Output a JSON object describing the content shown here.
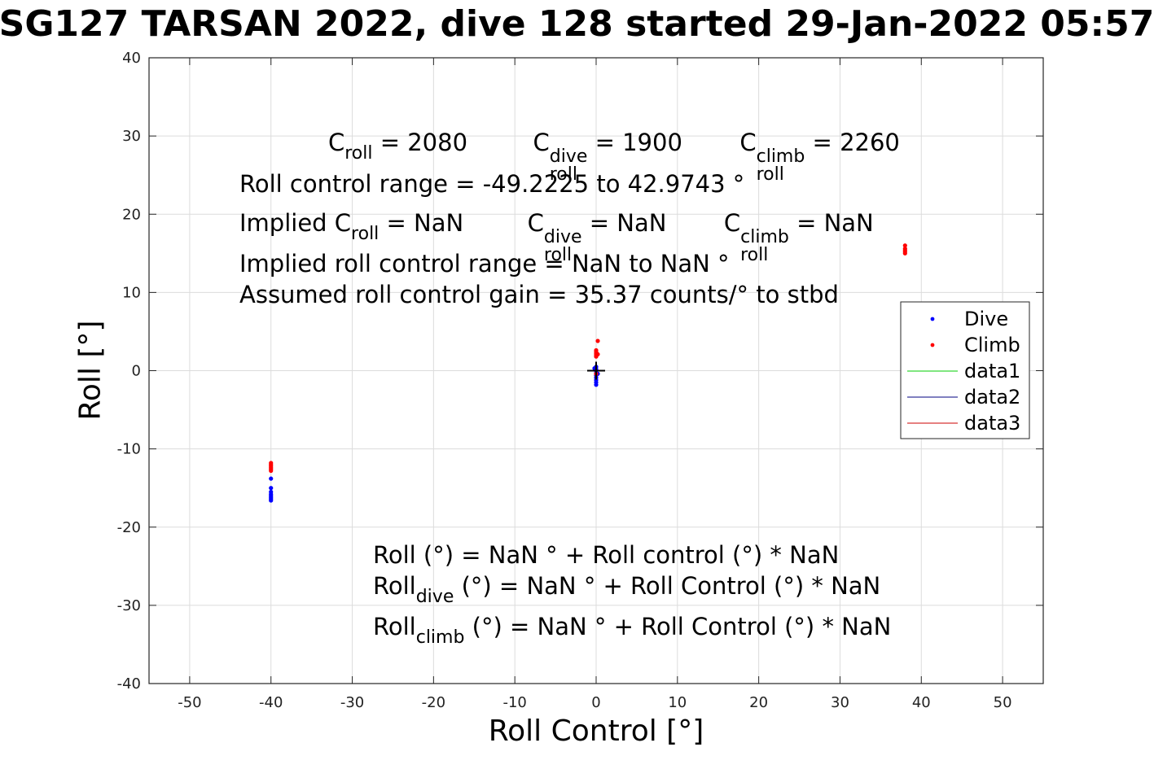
{
  "chart_data": {
    "type": "scatter",
    "title": "SG127 TARSAN 2022, dive 128 started 29-Jan-2022 05:57",
    "xlabel": "Roll Control [°]",
    "ylabel": "Roll [°]",
    "xlim": [
      -55,
      55
    ],
    "ylim": [
      -40,
      40
    ],
    "xticks": [
      -50,
      -40,
      -30,
      -20,
      -10,
      0,
      10,
      20,
      30,
      40,
      50
    ],
    "yticks": [
      -40,
      -30,
      -20,
      -10,
      0,
      10,
      20,
      30,
      40
    ],
    "xtick_labels": [
      "-50",
      "-40",
      "-30",
      "-20",
      "-10",
      "0",
      "10",
      "20",
      "30",
      "40",
      "50"
    ],
    "ytick_labels": [
      "-40",
      "-30",
      "-20",
      "-10",
      "0",
      "10",
      "20",
      "30",
      "40"
    ],
    "grid": true,
    "legend_position": "right",
    "series": [
      {
        "name": "Dive",
        "color": "#0000ff",
        "marker": "dot",
        "points": [
          [
            -40,
            -15.8
          ],
          [
            -40,
            -16.0
          ],
          [
            -40,
            -16.2
          ],
          [
            -40,
            -16.4
          ],
          [
            -40,
            -16.6
          ],
          [
            -40,
            -15.5
          ],
          [
            -40,
            -15.0
          ],
          [
            -40,
            -13.8
          ],
          [
            0,
            0.5
          ],
          [
            0,
            0.2
          ],
          [
            0,
            0.0
          ],
          [
            0,
            -0.3
          ],
          [
            0,
            -0.6
          ],
          [
            0,
            -0.9
          ],
          [
            0,
            -1.2
          ],
          [
            0,
            -1.5
          ],
          [
            0,
            -1.8
          ],
          [
            -0.2,
            0.3
          ],
          [
            0.2,
            -0.4
          ]
        ]
      },
      {
        "name": "Climb",
        "color": "#ff0000",
        "marker": "dot",
        "points": [
          [
            -40,
            -11.8
          ],
          [
            -40,
            -12.0
          ],
          [
            -40,
            -12.2
          ],
          [
            -40,
            -12.4
          ],
          [
            -40,
            -12.6
          ],
          [
            -40,
            -12.8
          ],
          [
            0,
            1.8
          ],
          [
            0,
            2.0
          ],
          [
            0,
            2.2
          ],
          [
            0,
            2.4
          ],
          [
            0,
            2.6
          ],
          [
            0.2,
            2.1
          ],
          [
            0.2,
            3.8
          ],
          [
            0,
            -0.4
          ],
          [
            38,
            15.0
          ],
          [
            38,
            15.2
          ],
          [
            38,
            15.4
          ],
          [
            38,
            15.6
          ],
          [
            38,
            16.0
          ]
        ]
      },
      {
        "name": "data1",
        "color": "#00cc00",
        "marker": "line",
        "points": []
      },
      {
        "name": "data2",
        "color": "#000080",
        "marker": "line",
        "points": []
      },
      {
        "name": "data3",
        "color": "#cc0000",
        "marker": "line",
        "points": []
      }
    ],
    "center_marker": {
      "x": 0,
      "y": 0,
      "color": "#000000",
      "symbol": "+"
    },
    "annotations": {
      "c_roll": "C",
      "c_roll_sub": "roll",
      "c_roll_val": "= 2080",
      "c_dive_sup": "dive",
      "c_dive_sub": "roll",
      "c_dive_val": "= 1900",
      "c_climb_sup": "climb",
      "c_climb_sub": "roll",
      "c_climb_val": "= 2260",
      "range": "Roll control range = -49.2225 to 42.9743 °",
      "implied_prefix": "Implied C",
      "implied_sub": "roll",
      "implied_val": "=  NaN",
      "implied_dive_val": "=  NaN",
      "implied_climb_val": "=  NaN",
      "implied_range": "Implied roll control range = NaN to NaN °",
      "gain": "Assumed roll control gain = 35.37 counts/° to stbd",
      "eq1": "Roll (°) = NaN ° + Roll control (°) * NaN",
      "eq2_pre": "Roll",
      "eq2_sub": "dive",
      "eq2_post": " (°) = NaN ° + Roll Control (°) * NaN",
      "eq3_pre": "Roll",
      "eq3_sub": "climb",
      "eq3_post": " (°) = NaN ° + Roll Control (°) * NaN"
    }
  }
}
